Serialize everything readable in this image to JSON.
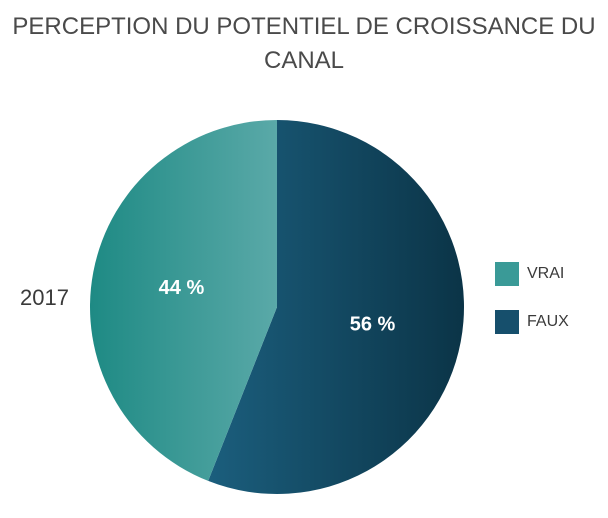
{
  "chart_data": {
    "type": "pie",
    "title_lines": [
      "PERCEPTION DU POTENTIEL DE CROISSANCE DU",
      "CANAL"
    ],
    "series_label": "2017",
    "categories": [
      "VRAI",
      "FAUX"
    ],
    "values": [
      44,
      56
    ],
    "data_labels": [
      "44 %",
      "56 %"
    ],
    "colors": [
      "#2f9a95",
      "#15506e"
    ],
    "legend_placement": "right"
  }
}
